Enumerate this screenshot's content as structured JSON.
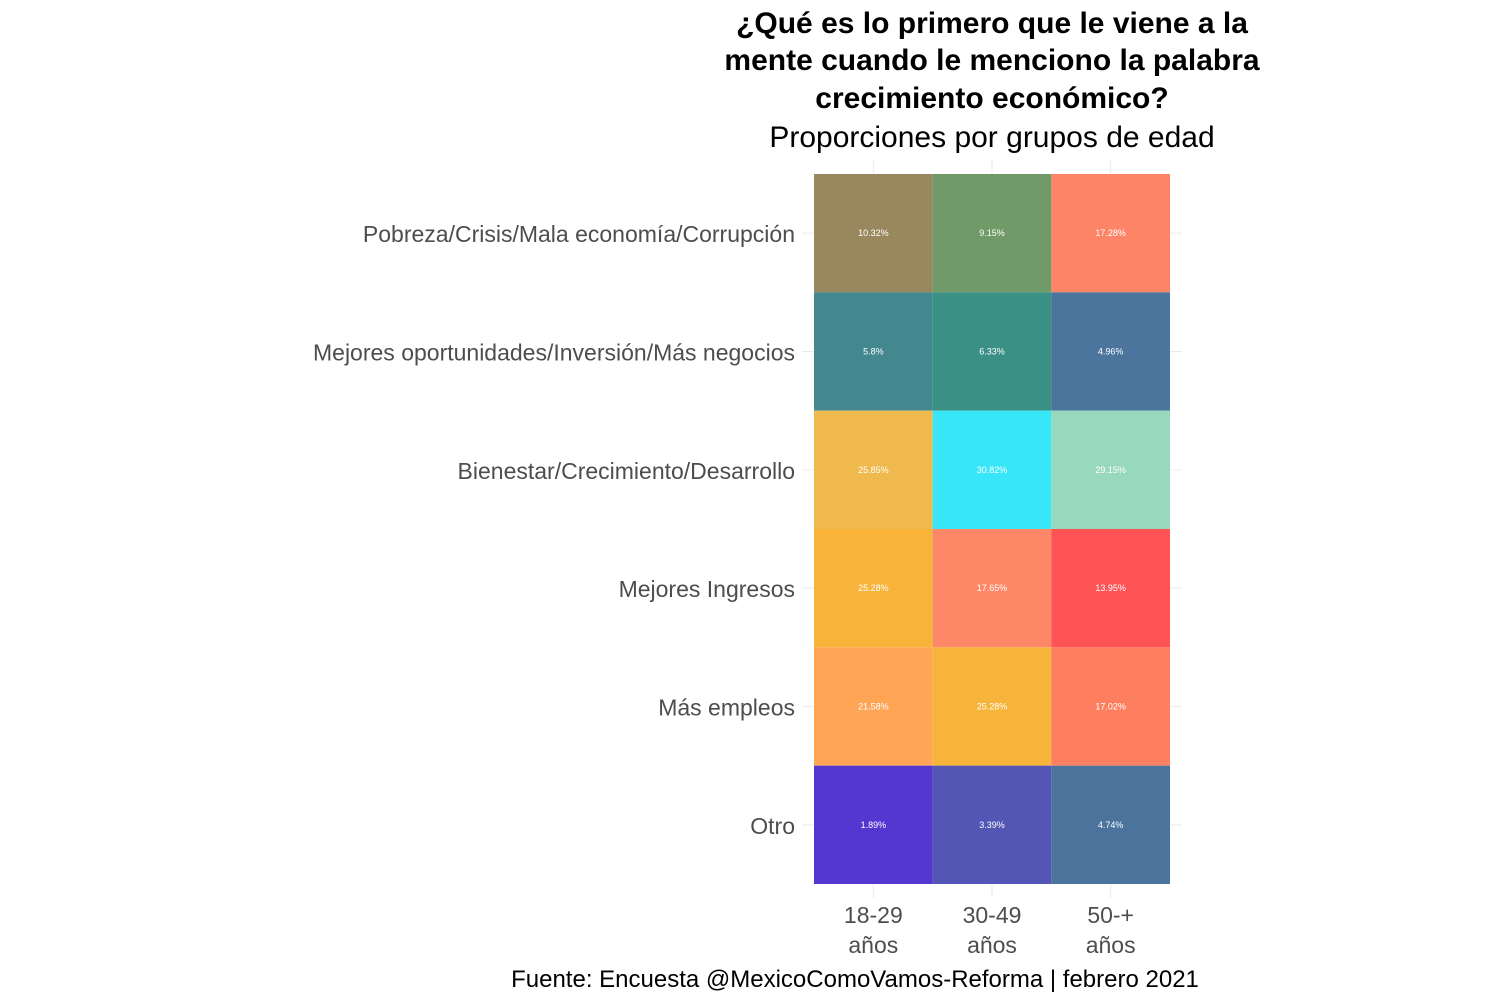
{
  "chart_data": {
    "type": "heatmap",
    "title_lines": [
      "¿Qué es lo primero que le viene a la",
      "mente cuando le menciono la palabra",
      "crecimiento económico?"
    ],
    "subtitle": "Proporciones por grupos de edad",
    "caption": "Fuente: Encuesta @MexicoComoVamos-Reforma | febrero 2021",
    "x_categories": [
      [
        "18-29",
        "años"
      ],
      [
        "30-49",
        "años"
      ],
      [
        "50-+",
        "años"
      ]
    ],
    "y_categories": [
      "Pobreza/Crisis/Mala economía/Corrupción",
      "Mejores oportunidades/Inversión/Más negocios",
      "Bienestar/Crecimiento/Desarrollo",
      "Mejores Ingresos",
      "Más empleos",
      "Otro"
    ],
    "values": [
      [
        10.32,
        9.15,
        17.28
      ],
      [
        5.8,
        6.33,
        4.96
      ],
      [
        25.85,
        30.82,
        29.15
      ],
      [
        25.28,
        17.65,
        13.95
      ],
      [
        21.58,
        25.28,
        17.02
      ],
      [
        1.89,
        3.39,
        4.74
      ]
    ],
    "labels": [
      [
        "10.32%",
        "9.15%",
        "17.28%"
      ],
      [
        "5.8%",
        "6.33%",
        "4.96%"
      ],
      [
        "25.85%",
        "30.82%",
        "29.15%"
      ],
      [
        "25.28%",
        "17.65%",
        "13.95%"
      ],
      [
        "21.58%",
        "25.28%",
        "17.02%"
      ],
      [
        "1.89%",
        "3.39%",
        "4.74%"
      ]
    ],
    "colors": [
      [
        "#99885e",
        "#709b68",
        "#fe8467"
      ],
      [
        "#43888f",
        "#3a9085",
        "#4b759c"
      ],
      [
        "#efb94e",
        "#37e6f7",
        "#98d8bd"
      ],
      [
        "#f7b33a",
        "#fe8767",
        "#fe5354"
      ],
      [
        "#fea656",
        "#f7b43a",
        "#fe7f60"
      ],
      [
        "#5436d1",
        "#5456b5",
        "#4b739c"
      ]
    ],
    "grid": true,
    "legend": "none"
  }
}
